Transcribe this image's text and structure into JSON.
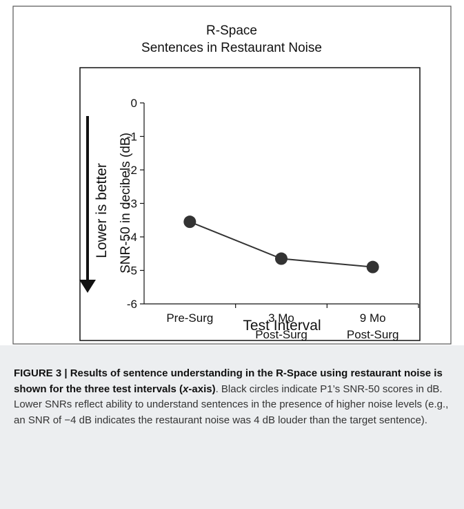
{
  "chart_data": {
    "type": "line",
    "title": "R-Space",
    "subtitle": "Sentences in Restaurant Noise",
    "categories": [
      "Pre-Surg",
      "3 Mo\nPost-Surg",
      "9 Mo\nPost-Surg"
    ],
    "series": [
      {
        "name": "P1",
        "color": "#333333",
        "values": [
          -3.55,
          -4.65,
          -4.9
        ]
      }
    ],
    "ylim": [
      -6,
      0
    ],
    "yticks": [
      0,
      -1,
      -2,
      -3,
      -4,
      -5,
      -6
    ],
    "xlabel": "Test Interval",
    "ylabel": "SNR-50 in decibels (dB)",
    "annotation": "Lower is better"
  },
  "caption": {
    "bold_start": "FIGURE 3 | Results of sentence understanding in the R-Space using restaurant noise is shown for the three test intervals (",
    "bold_italic": "x",
    "bold_end": "-axis)",
    "text": ". Black circles indicate P1’s SNR-50 scores in dB. Lower SNRs reflect ability to understand sentences in the presence of higher noise levels (e.g., an SNR of −4 dB indicates the restaurant noise was 4 dB louder than the target sentence)."
  }
}
